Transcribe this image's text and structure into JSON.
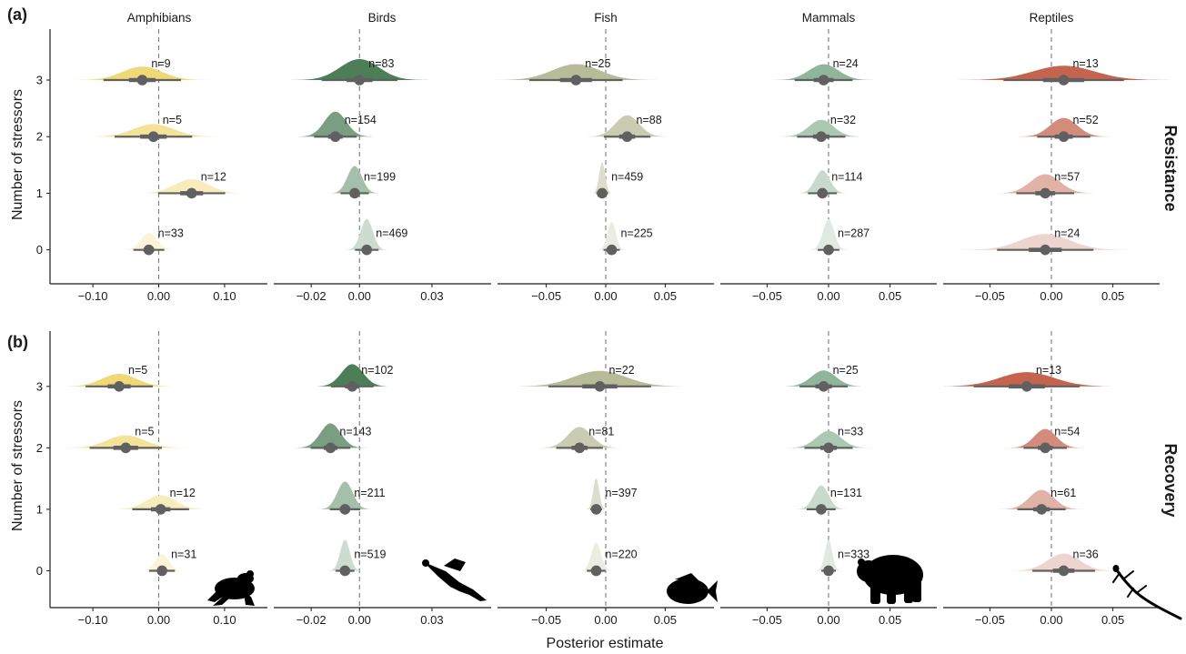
{
  "taxa": [
    {
      "name": "Amphibians",
      "color": "#efd875"
    },
    {
      "name": "Birds",
      "color": "#4c7e57"
    },
    {
      "name": "Fish",
      "color": "#b8bb98"
    },
    {
      "name": "Mammals",
      "color": "#8fb59a"
    },
    {
      "name": "Reptiles",
      "color": "#c4644f"
    }
  ],
  "panel_labels": [
    "(a)",
    "(b)"
  ],
  "row_strips": [
    "Resistance",
    "Recovery"
  ],
  "xlabel": "Posterior estimate",
  "ylabel": "Number of stressors",
  "silhouette_icons": [
    "frog-icon",
    "bird-icon",
    "fish-icon",
    "bear-icon",
    "lizard-icon"
  ],
  "chart_data": {
    "type": "halfeye",
    "y_categories": [
      "0",
      "1",
      "2",
      "3"
    ],
    "x_ticks": {
      "Amphibians": {
        "values": [
          -0.1,
          0.0,
          0.1
        ],
        "labels": [
          "−0.10",
          "0.00",
          "0.10"
        ]
      },
      "Birds": {
        "values": [
          -0.02,
          0.0,
          0.03
        ],
        "labels": [
          "−0.02",
          "0.00",
          "0.03"
        ]
      },
      "Fish": {
        "values": [
          -0.05,
          0.0,
          0.05
        ],
        "labels": [
          "−0.05",
          "0.00",
          "0.05"
        ]
      },
      "Mammals": {
        "values": [
          -0.05,
          0.0,
          0.05
        ],
        "labels": [
          "−0.05",
          "0.00",
          "0.05"
        ]
      },
      "Reptiles": {
        "values": [
          -0.05,
          0.0,
          0.05
        ],
        "labels": [
          "−0.05",
          "0.00",
          "0.05"
        ]
      }
    },
    "xlim": {
      "Amphibians": [
        -0.165,
        0.165
      ],
      "Birds": [
        -0.0355,
        0.0545
      ],
      "Fish": [
        -0.091,
        0.091
      ],
      "Mammals": [
        -0.088,
        0.088
      ],
      "Reptiles": [
        -0.088,
        0.088
      ]
    },
    "ylim": [
      -0.6,
      3.9
    ],
    "panels": [
      {
        "label": "(a)",
        "response": "Resistance",
        "taxa": [
          {
            "taxon": "Amphibians",
            "estimates": [
              {
                "stressors": 0,
                "mean": -0.015,
                "sd": 0.012,
                "n": 33
              },
              {
                "stressors": 1,
                "mean": 0.05,
                "sd": 0.026,
                "n": 12
              },
              {
                "stressors": 2,
                "mean": -0.008,
                "sd": 0.03,
                "n": 5
              },
              {
                "stressors": 3,
                "mean": -0.025,
                "sd": 0.03,
                "n": 9
              }
            ]
          },
          {
            "taxon": "Birds",
            "estimates": [
              {
                "stressors": 0,
                "mean": 0.003,
                "sd": 0.0025,
                "n": 469
              },
              {
                "stressors": 1,
                "mean": -0.002,
                "sd": 0.003,
                "n": 199
              },
              {
                "stressors": 2,
                "mean": -0.01,
                "sd": 0.0045,
                "n": 154
              },
              {
                "stressors": 3,
                "mean": 0.0,
                "sd": 0.008,
                "n": 83
              }
            ]
          },
          {
            "taxon": "Fish",
            "estimates": [
              {
                "stressors": 0,
                "mean": 0.005,
                "sd": 0.0035,
                "n": 225
              },
              {
                "stressors": 1,
                "mean": -0.003,
                "sd": 0.0025,
                "n": 459
              },
              {
                "stressors": 2,
                "mean": 0.018,
                "sd": 0.01,
                "n": 88
              },
              {
                "stressors": 3,
                "mean": -0.025,
                "sd": 0.02,
                "n": 25
              }
            ]
          },
          {
            "taxon": "Mammals",
            "estimates": [
              {
                "stressors": 0,
                "mean": 0.0,
                "sd": 0.0045,
                "n": 287
              },
              {
                "stressors": 1,
                "mean": -0.005,
                "sd": 0.006,
                "n": 114
              },
              {
                "stressors": 2,
                "mean": -0.006,
                "sd": 0.01,
                "n": 32
              },
              {
                "stressors": 3,
                "mean": -0.004,
                "sd": 0.012,
                "n": 24
              }
            ]
          },
          {
            "taxon": "Reptiles",
            "estimates": [
              {
                "stressors": 0,
                "mean": -0.005,
                "sd": 0.02,
                "n": 24
              },
              {
                "stressors": 1,
                "mean": -0.005,
                "sd": 0.012,
                "n": 57
              },
              {
                "stressors": 2,
                "mean": 0.01,
                "sd": 0.011,
                "n": 52
              },
              {
                "stressors": 3,
                "mean": 0.01,
                "sd": 0.025,
                "n": 13
              }
            ]
          }
        ]
      },
      {
        "label": "(b)",
        "response": "Recovery",
        "taxa": [
          {
            "taxon": "Amphibians",
            "estimates": [
              {
                "stressors": 0,
                "mean": 0.005,
                "sd": 0.01,
                "n": 31
              },
              {
                "stressors": 1,
                "mean": 0.003,
                "sd": 0.022,
                "n": 12
              },
              {
                "stressors": 2,
                "mean": -0.05,
                "sd": 0.028,
                "n": 5
              },
              {
                "stressors": 3,
                "mean": -0.06,
                "sd": 0.026,
                "n": 5
              }
            ]
          },
          {
            "taxon": "Birds",
            "estimates": [
              {
                "stressors": 0,
                "mean": -0.006,
                "sd": 0.002,
                "n": 519
              },
              {
                "stressors": 1,
                "mean": -0.006,
                "sd": 0.0032,
                "n": 211
              },
              {
                "stressors": 2,
                "mean": -0.012,
                "sd": 0.0042,
                "n": 143
              },
              {
                "stressors": 3,
                "mean": -0.003,
                "sd": 0.0045,
                "n": 102
              }
            ]
          },
          {
            "taxon": "Fish",
            "estimates": [
              {
                "stressors": 0,
                "mean": -0.008,
                "sd": 0.004,
                "n": 220
              },
              {
                "stressors": 1,
                "mean": -0.008,
                "sd": 0.0025,
                "n": 397
              },
              {
                "stressors": 2,
                "mean": -0.022,
                "sd": 0.01,
                "n": 81
              },
              {
                "stressors": 3,
                "mean": -0.005,
                "sd": 0.022,
                "n": 22
              }
            ]
          },
          {
            "taxon": "Mammals",
            "estimates": [
              {
                "stressors": 0,
                "mean": 0.0,
                "sd": 0.003,
                "n": 333
              },
              {
                "stressors": 1,
                "mean": -0.006,
                "sd": 0.006,
                "n": 131
              },
              {
                "stressors": 2,
                "mean": 0.0,
                "sd": 0.01,
                "n": 33
              },
              {
                "stressors": 3,
                "mean": -0.004,
                "sd": 0.01,
                "n": 25
              }
            ]
          },
          {
            "taxon": "Reptiles",
            "estimates": [
              {
                "stressors": 0,
                "mean": 0.01,
                "sd": 0.013,
                "n": 36
              },
              {
                "stressors": 1,
                "mean": -0.008,
                "sd": 0.01,
                "n": 61
              },
              {
                "stressors": 2,
                "mean": -0.005,
                "sd": 0.009,
                "n": 54
              },
              {
                "stressors": 3,
                "mean": -0.02,
                "sd": 0.022,
                "n": 13
              }
            ]
          }
        ]
      }
    ]
  }
}
